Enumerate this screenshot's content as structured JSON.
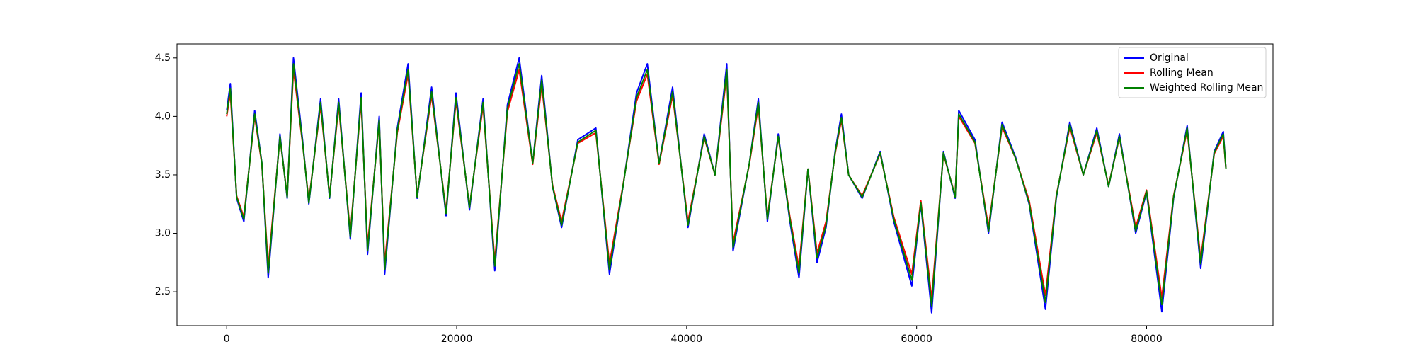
{
  "chart_data": {
    "type": "line",
    "x": [
      0,
      314,
      864,
      1492,
      2434,
      3062,
      3611,
      4631,
      5259,
      5809,
      6594,
      7144,
      8164,
      8949,
      9734,
      10755,
      11697,
      12246,
      13267,
      13738,
      14837,
      15779,
      16564,
      17820,
      19076,
      19939,
      21117,
      22294,
      23315,
      24414,
      25434,
      26612,
      27397,
      28339,
      29124,
      30536,
      32107,
      33284,
      34462,
      35639,
      36581,
      37601,
      38779,
      40114,
      41527,
      42469,
      43489,
      44039,
      45452,
      46237,
      47022,
      47964,
      48984,
      49769,
      50554,
      51339,
      52124,
      52909,
      53459,
      54087,
      55264,
      55657,
      56834,
      58012,
      59582,
      60367,
      61309,
      62329,
      63350,
      63664,
      65077,
      66254,
      67432,
      68609,
      69787,
      71200,
      72142,
      73319,
      74497,
      75674,
      76695,
      77637,
      79050,
      79992,
      81326,
      82347,
      83525,
      84702,
      85880,
      86665,
      86900
    ],
    "series": [
      {
        "name": "Original",
        "color": "#0000ff",
        "values": [
          4.05,
          4.28,
          3.3,
          3.1,
          4.05,
          3.6,
          2.62,
          3.85,
          3.3,
          4.5,
          3.8,
          3.25,
          4.15,
          3.3,
          4.15,
          2.95,
          4.2,
          2.82,
          4.0,
          2.65,
          3.9,
          4.45,
          3.3,
          4.25,
          3.15,
          4.2,
          3.2,
          4.15,
          2.68,
          4.1,
          4.5,
          3.6,
          4.35,
          3.4,
          3.05,
          3.8,
          3.9,
          2.65,
          3.4,
          4.2,
          4.45,
          3.6,
          4.25,
          3.05,
          3.85,
          3.5,
          4.45,
          2.85,
          3.6,
          4.15,
          3.1,
          3.85,
          3.1,
          2.62,
          3.55,
          2.75,
          3.05,
          3.7,
          4.02,
          3.5,
          3.3,
          3.4,
          3.7,
          3.1,
          2.55,
          3.25,
          2.32,
          3.7,
          3.3,
          4.05,
          3.8,
          3.0,
          3.95,
          3.65,
          3.25,
          2.35,
          3.3,
          3.95,
          3.5,
          3.9,
          3.4,
          3.85,
          3.0,
          3.35,
          2.33,
          3.3,
          3.92,
          2.7,
          3.7,
          3.87,
          3.55
        ]
      },
      {
        "name": "Rolling Mean",
        "color": "#ff0000",
        "values": [
          4.0,
          4.2,
          3.32,
          3.14,
          4.0,
          3.59,
          2.71,
          3.82,
          3.32,
          4.4,
          3.77,
          3.28,
          4.09,
          3.32,
          4.09,
          3.0,
          4.13,
          2.89,
          3.95,
          2.74,
          3.86,
          4.36,
          3.32,
          4.18,
          3.19,
          4.13,
          3.23,
          4.09,
          2.76,
          4.04,
          4.4,
          3.59,
          4.27,
          3.41,
          3.1,
          3.77,
          3.86,
          2.74,
          3.41,
          4.13,
          4.36,
          3.59,
          4.18,
          3.1,
          3.82,
          3.5,
          4.36,
          2.92,
          3.59,
          4.09,
          3.14,
          3.82,
          3.14,
          2.71,
          3.55,
          2.83,
          3.1,
          3.68,
          3.97,
          3.5,
          3.32,
          3.41,
          3.68,
          3.14,
          2.65,
          3.28,
          2.44,
          3.68,
          3.32,
          4.0,
          3.77,
          3.05,
          3.91,
          3.64,
          3.28,
          2.47,
          3.32,
          3.91,
          3.5,
          3.86,
          3.41,
          3.82,
          3.05,
          3.37,
          2.45,
          3.32,
          3.88,
          2.78,
          3.68,
          3.83,
          3.55
        ]
      },
      {
        "name": "Weighted Rolling Mean",
        "color": "#008000",
        "values": [
          4.02,
          4.24,
          3.31,
          3.12,
          4.02,
          3.6,
          2.66,
          3.83,
          3.31,
          4.45,
          3.78,
          3.26,
          4.12,
          3.31,
          4.12,
          2.97,
          4.16,
          2.85,
          3.97,
          2.69,
          3.88,
          4.4,
          3.31,
          4.21,
          3.17,
          4.16,
          3.22,
          4.12,
          2.72,
          4.07,
          4.45,
          3.6,
          4.31,
          3.4,
          3.07,
          3.78,
          3.88,
          2.69,
          3.4,
          4.16,
          4.4,
          3.6,
          4.21,
          3.07,
          3.83,
          3.5,
          4.4,
          2.88,
          3.6,
          4.12,
          3.12,
          3.83,
          3.12,
          2.66,
          3.55,
          2.79,
          3.07,
          3.69,
          3.99,
          3.5,
          3.31,
          3.4,
          3.69,
          3.12,
          2.6,
          3.26,
          2.38,
          3.69,
          3.31,
          4.02,
          3.78,
          3.02,
          3.93,
          3.64,
          3.26,
          2.41,
          3.31,
          3.93,
          3.5,
          3.88,
          3.4,
          3.83,
          3.02,
          3.36,
          2.39,
          3.31,
          3.9,
          2.74,
          3.69,
          3.85,
          3.55
        ]
      }
    ],
    "xlim": [
      -4320,
      90990
    ],
    "ylim": [
      2.21,
      4.62
    ],
    "xticks": [
      0,
      20000,
      40000,
      60000,
      80000
    ],
    "yticks": [
      2.5,
      {
        "value": 3,
        "label": "3.0"
      },
      3.5,
      {
        "value": 4,
        "label": "4.0"
      },
      4.5
    ],
    "legend": "upper right"
  }
}
